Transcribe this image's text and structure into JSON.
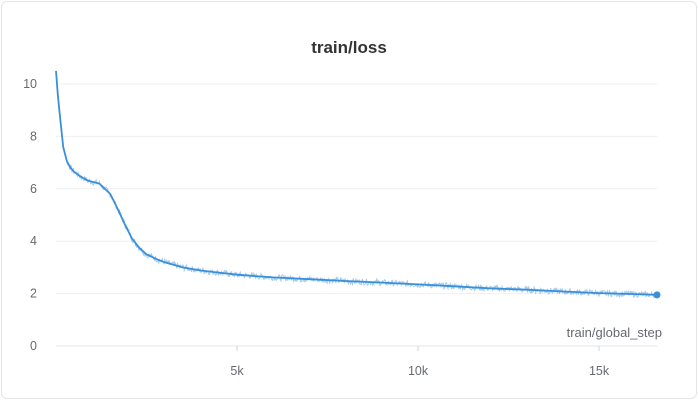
{
  "panel": {
    "title": "train/loss"
  },
  "chart_data": {
    "type": "line",
    "title": "train/loss",
    "xlabel": "train/global_step",
    "ylabel": "",
    "xlim": [
      0,
      16600
    ],
    "ylim": [
      0,
      10.5
    ],
    "x_ticks": [
      {
        "value": 5000,
        "label": "5k"
      },
      {
        "value": 10000,
        "label": "10k"
      },
      {
        "value": 15000,
        "label": "15k"
      }
    ],
    "y_ticks": [
      {
        "value": 0,
        "label": "0"
      },
      {
        "value": 2,
        "label": "2"
      },
      {
        "value": 4,
        "label": "4"
      },
      {
        "value": 6,
        "label": "6"
      },
      {
        "value": 8,
        "label": "8"
      },
      {
        "value": 10,
        "label": "10"
      }
    ],
    "grid": true,
    "color": "#3a8fd9",
    "series": [
      {
        "name": "",
        "x": [
          0,
          50,
          100,
          200,
          300,
          400,
          500,
          700,
          900,
          1200,
          1500,
          1700,
          1900,
          2100,
          2300,
          2500,
          2800,
          3000,
          3500,
          4000,
          4500,
          5000,
          6000,
          7000,
          8000,
          9000,
          10000,
          11000,
          12000,
          13000,
          14000,
          15000,
          16000,
          16600
        ],
        "values": [
          10.5,
          9.6,
          8.9,
          7.6,
          7.05,
          6.8,
          6.65,
          6.45,
          6.3,
          6.2,
          5.8,
          5.25,
          4.65,
          4.1,
          3.75,
          3.5,
          3.3,
          3.2,
          3.0,
          2.88,
          2.8,
          2.72,
          2.62,
          2.55,
          2.48,
          2.42,
          2.35,
          2.28,
          2.2,
          2.15,
          2.08,
          2.02,
          1.98,
          1.95
        ]
      }
    ]
  }
}
